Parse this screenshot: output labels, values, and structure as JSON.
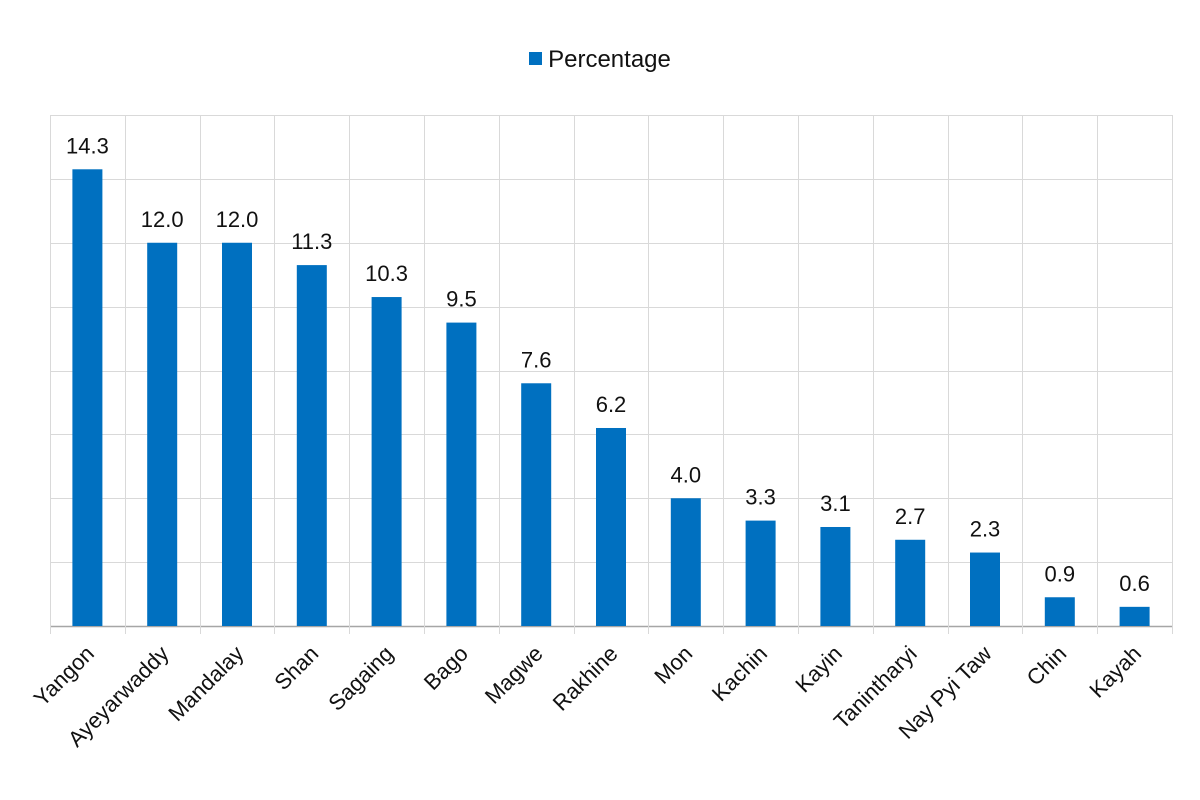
{
  "chart_data": {
    "type": "bar",
    "categories": [
      "Yangon",
      "Ayeyarwaddy",
      "Mandalay",
      "Shan",
      "Sagaing",
      "Bago",
      "Magwe",
      "Rakhine",
      "Mon",
      "Kachin",
      "Kayin",
      "Tanintharyi",
      "Nay Pyi Taw",
      "Chin",
      "Kayah"
    ],
    "series": [
      {
        "name": "Percentage",
        "values": [
          14.3,
          12.0,
          12.0,
          11.3,
          10.3,
          9.5,
          7.6,
          6.2,
          4.0,
          3.3,
          3.1,
          2.7,
          2.3,
          0.9,
          0.6
        ]
      }
    ],
    "data_labels": [
      "14.3",
      "12.0",
      "12.0",
      "11.3",
      "10.3",
      "9.5",
      "7.6",
      "6.2",
      "4.0",
      "3.3",
      "3.1",
      "2.7",
      "2.3",
      "0.9",
      "0.6"
    ],
    "ylim": [
      0,
      16
    ],
    "grid": true,
    "legend_position": "top-center",
    "colors": {
      "bar": "#0070c0",
      "grid": "#d9d9d9",
      "axis": "#a6a6a6"
    }
  }
}
